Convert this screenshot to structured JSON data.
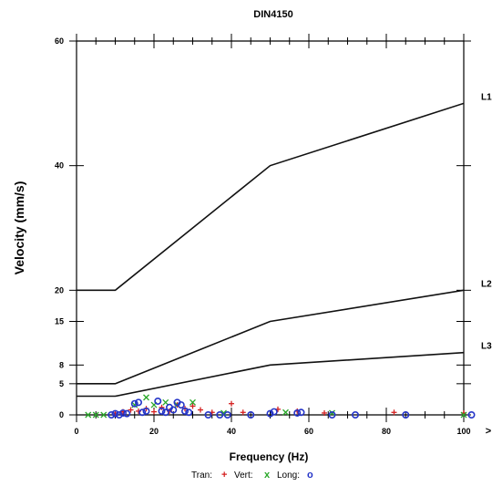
{
  "chart_data": {
    "type": "line",
    "title": "DIN4150",
    "xlabel": "Frequency (Hz)",
    "ylabel": "Velocity (mm/s)",
    "xlim": [
      0,
      100
    ],
    "ylim": [
      0,
      60
    ],
    "x_ticks": [
      "0",
      "20",
      "40",
      "60",
      "80",
      "100"
    ],
    "y_ticks": [
      "0",
      "5",
      "8",
      "15",
      "20",
      "40",
      "60"
    ],
    "overflow_marker": ">",
    "grid": false,
    "series": [
      {
        "name": "L1",
        "x": [
          0,
          10,
          50,
          100
        ],
        "y": [
          20,
          20,
          40,
          50
        ]
      },
      {
        "name": "L2",
        "x": [
          0,
          10,
          50,
          100
        ],
        "y": [
          5,
          5,
          15,
          20
        ]
      },
      {
        "name": "L3",
        "x": [
          0,
          10,
          50,
          100
        ],
        "y": [
          3,
          3,
          8,
          10
        ]
      }
    ],
    "legend": {
      "position": "bottom",
      "items": [
        {
          "label": "Tran:",
          "symbol": "+",
          "color": "#d42020"
        },
        {
          "label": "Vert:",
          "symbol": "x",
          "color": "#2aa82a"
        },
        {
          "label": "Long:",
          "symbol": "o",
          "color": "#2535c8"
        }
      ]
    },
    "scatter": {
      "tran": [
        [
          10,
          0.3
        ],
        [
          12,
          0.5
        ],
        [
          14,
          0.8
        ],
        [
          16,
          0.6
        ],
        [
          18,
          1
        ],
        [
          20,
          0.5
        ],
        [
          22,
          1.2
        ],
        [
          24,
          0.6
        ],
        [
          26,
          1.6
        ],
        [
          28,
          1
        ],
        [
          30,
          1.4
        ],
        [
          32,
          0.8
        ],
        [
          35,
          0.4
        ],
        [
          40,
          1.8
        ],
        [
          43,
          0.4
        ],
        [
          52,
          0.9
        ],
        [
          57,
          0.6
        ],
        [
          64,
          0.3
        ],
        [
          82,
          0.4
        ],
        [
          100,
          0.3
        ]
      ],
      "vert": [
        [
          3,
          0
        ],
        [
          5,
          0
        ],
        [
          7,
          0
        ],
        [
          15,
          1.6
        ],
        [
          18,
          2.8
        ],
        [
          20,
          1.6
        ],
        [
          23,
          2
        ],
        [
          26,
          1.6
        ],
        [
          30,
          2
        ],
        [
          38,
          0.3
        ],
        [
          54,
          0.4
        ],
        [
          66,
          0.3
        ],
        [
          100,
          0
        ]
      ],
      "long": [
        [
          9,
          0
        ],
        [
          10,
          0.2
        ],
        [
          11,
          0
        ],
        [
          12,
          0.3
        ],
        [
          13,
          0.2
        ],
        [
          15,
          1.8
        ],
        [
          16,
          2
        ],
        [
          17,
          0.4
        ],
        [
          18,
          0.6
        ],
        [
          21,
          2.2
        ],
        [
          22,
          0.6
        ],
        [
          23,
          0.4
        ],
        [
          24,
          1.2
        ],
        [
          25,
          0.8
        ],
        [
          26,
          2
        ],
        [
          27,
          1.6
        ],
        [
          28,
          0.6
        ],
        [
          29,
          0.4
        ],
        [
          34,
          0
        ],
        [
          37,
          0
        ],
        [
          39,
          0
        ],
        [
          45,
          0
        ],
        [
          50,
          0.2
        ],
        [
          51,
          0.5
        ],
        [
          57,
          0.3
        ],
        [
          58,
          0.4
        ],
        [
          66,
          0
        ],
        [
          72,
          0
        ],
        [
          85,
          0
        ],
        [
          102,
          0
        ]
      ]
    }
  }
}
